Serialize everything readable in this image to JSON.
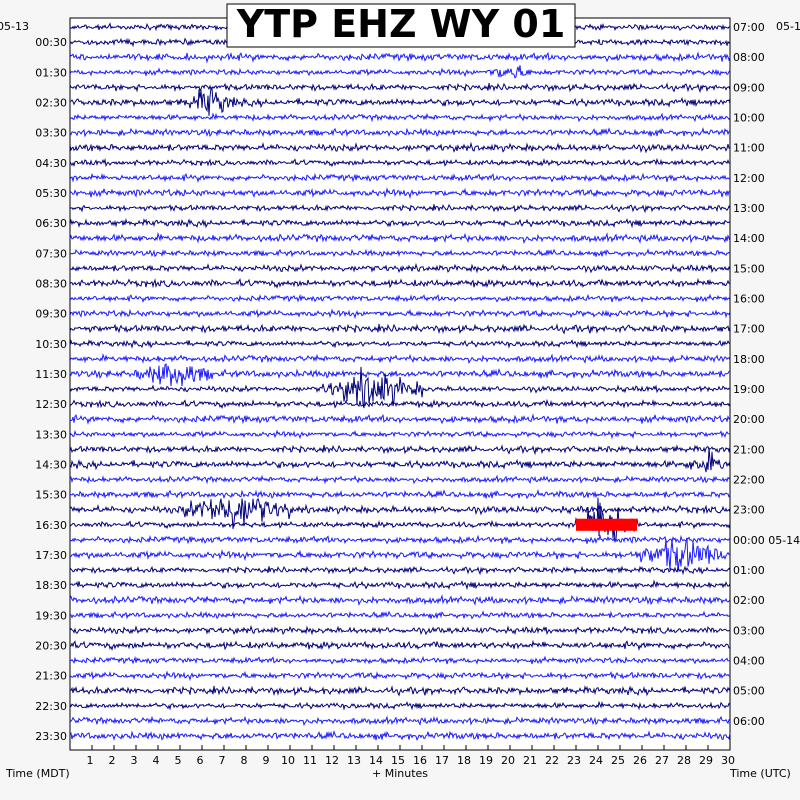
{
  "title": "YTP EHZ WY 01",
  "left_date": "05-13",
  "right_date": "05-1",
  "right_midnight_date": "05-14",
  "left_axis_label": "Time (MDT)",
  "right_axis_label": "Time (UTC)",
  "x_axis_label": "+ Minutes",
  "colors": {
    "trace_a": "#00007a",
    "trace_b": "#1a1aff",
    "clipped": "#ff0000",
    "background": "#ffffff"
  },
  "chart_data": {
    "type": "helicorder",
    "title": "YTP EHZ WY 01",
    "xlabel": "+ Minutes",
    "xlim": [
      0,
      30
    ],
    "x_ticks": [
      "1",
      "2",
      "3",
      "4",
      "5",
      "6",
      "7",
      "8",
      "9",
      "10",
      "11",
      "12",
      "13",
      "14",
      "15",
      "16",
      "17",
      "18",
      "19",
      "20",
      "21",
      "22",
      "23",
      "24",
      "25",
      "26",
      "27",
      "28",
      "29",
      "30"
    ],
    "left_ticks": [
      "00:30",
      "01:30",
      "02:30",
      "03:30",
      "04:30",
      "05:30",
      "06:30",
      "07:30",
      "08:30",
      "09:30",
      "10:30",
      "11:30",
      "12:30",
      "13:30",
      "14:30",
      "15:30",
      "16:30",
      "17:30",
      "18:30",
      "19:30",
      "20:30",
      "21:30",
      "22:30",
      "23:30"
    ],
    "right_ticks": [
      "07:00",
      "08:00",
      "09:00",
      "10:00",
      "11:00",
      "12:00",
      "13:00",
      "14:00",
      "15:00",
      "16:00",
      "17:00",
      "18:00",
      "19:00",
      "20:00",
      "21:00",
      "22:00",
      "23:00",
      "00:00",
      "01:00",
      "02:00",
      "03:00",
      "04:00",
      "05:00",
      "06:00"
    ],
    "minutes_per_line": 30,
    "hours_shown": 24,
    "series": [
      {
        "color": "#00007a"
      },
      {
        "color": "#1a1aff"
      }
    ],
    "events": [
      {
        "hour": 2.5,
        "minute_start": 5.2,
        "minute_end": 7.5,
        "amplitude": 2.2
      },
      {
        "hour": 1.5,
        "minute_start": 19.0,
        "minute_end": 21.0,
        "amplitude": 1.2
      },
      {
        "hour": 11.5,
        "minute_start": 3.0,
        "minute_end": 6.5,
        "amplitude": 2.0
      },
      {
        "hour": 12.0,
        "minute_start": 11.5,
        "minute_end": 16.0,
        "amplitude": 3.0
      },
      {
        "hour": 16.0,
        "minute_start": 5.0,
        "minute_end": 10.0,
        "amplitude": 3.0
      },
      {
        "hour": 16.5,
        "minute_start": 23.0,
        "minute_end": 25.8,
        "amplitude": 5.0,
        "clipped": true
      },
      {
        "hour": 17.5,
        "minute_start": 25.5,
        "minute_end": 30.0,
        "amplitude": 2.5
      },
      {
        "hour": 14.5,
        "minute_start": 28.0,
        "minute_end": 30.0,
        "amplitude": 1.5
      }
    ]
  }
}
